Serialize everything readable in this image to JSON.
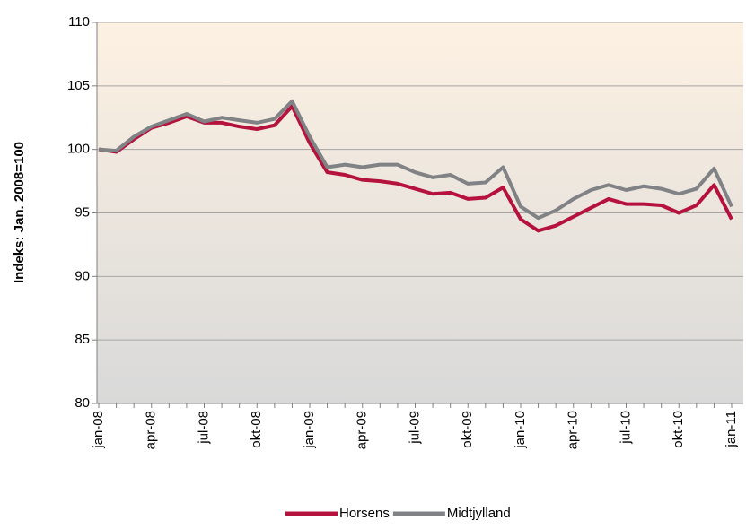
{
  "chart_data": {
    "type": "line",
    "y_label": "Indeks: Jan. 2008=100",
    "categories": [
      "jan-08",
      null,
      null,
      "apr-08",
      null,
      null,
      "jul-08",
      null,
      null,
      "okt-08",
      null,
      null,
      "jan-09",
      null,
      null,
      "apr-09",
      null,
      null,
      "jul-09",
      null,
      null,
      "okt-09",
      null,
      null,
      "jan-10",
      null,
      null,
      "apr-10",
      null,
      null,
      "jul-10",
      null,
      null,
      "okt-10",
      null,
      null,
      "jan-11"
    ],
    "series": [
      {
        "name": "Horsens",
        "color": "#b5123e",
        "values": [
          100,
          99.8,
          100.8,
          101.7,
          102.1,
          102.6,
          102.1,
          102.1,
          101.8,
          101.6,
          101.9,
          103.4,
          100.5,
          98.2,
          98.0,
          97.6,
          97.5,
          97.3,
          96.9,
          96.5,
          96.6,
          96.1,
          96.2,
          97.0,
          94.5,
          93.6,
          94.0,
          94.7,
          95.4,
          96.1,
          95.7,
          95.7,
          95.6,
          95.0,
          95.6,
          97.2,
          94.5
        ]
      },
      {
        "name": "Midtjylland",
        "color": "#808285",
        "values": [
          100,
          99.9,
          101.0,
          101.8,
          102.3,
          102.8,
          102.2,
          102.5,
          102.3,
          102.1,
          102.4,
          103.8,
          101.0,
          98.6,
          98.8,
          98.6,
          98.8,
          98.8,
          98.2,
          97.8,
          98.0,
          97.3,
          97.4,
          98.6,
          95.5,
          94.6,
          95.2,
          96.1,
          96.8,
          97.2,
          96.8,
          97.1,
          96.9,
          96.5,
          96.9,
          98.5,
          95.5
        ]
      }
    ],
    "ylim": [
      80,
      110
    ],
    "yticks": [
      80,
      85,
      90,
      95,
      100,
      105,
      110
    ],
    "grid": true,
    "legend": "bottom"
  }
}
